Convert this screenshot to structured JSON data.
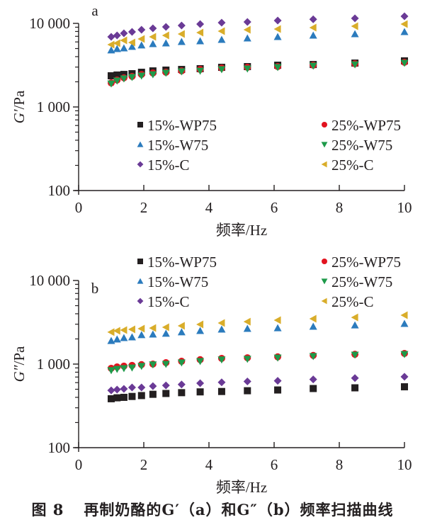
{
  "caption": {
    "figure_number": "图 8",
    "text": "再制奶酪的G′（a）和G″（b）频率扫描曲线"
  },
  "chart_data": [
    {
      "type": "scatter",
      "panel_label": "a",
      "title": "",
      "xlabel": "频率/Hz",
      "ylabel": "G′/Pa",
      "yscale": "log",
      "xlim": [
        0,
        10
      ],
      "ylim": [
        100,
        10000
      ],
      "xticks": [
        0,
        2,
        4,
        6,
        8,
        10
      ],
      "xtick_labels": [
        "0",
        "2",
        "4",
        "6",
        "8",
        "10"
      ],
      "yticks": [
        100,
        1000,
        10000
      ],
      "ytick_labels": [
        "100",
        "1 000",
        "10 000"
      ],
      "grid": false,
      "legend_position": "lower-center",
      "x": [
        1,
        1.18,
        1.39,
        1.64,
        1.93,
        2.28,
        2.68,
        3.16,
        3.73,
        4.39,
        5.18,
        6.11,
        7.2,
        8.48,
        10
      ],
      "series": [
        {
          "name": "15%-WP75",
          "marker": "square",
          "color": "#231f20",
          "values": [
            2360,
            2410,
            2450,
            2500,
            2600,
            2700,
            2760,
            2810,
            2870,
            2980,
            3040,
            3160,
            3220,
            3350,
            3560
          ]
        },
        {
          "name": "25%-WP75",
          "marker": "circle",
          "color": "#e2131f",
          "values": [
            1940,
            2100,
            2230,
            2320,
            2450,
            2550,
            2600,
            2700,
            2810,
            2920,
            2980,
            3040,
            3160,
            3290,
            3420
          ]
        },
        {
          "name": "15%-W75",
          "marker": "triangle-up",
          "color": "#2b7bbd",
          "values": [
            4770,
            4950,
            5050,
            5260,
            5470,
            5680,
            5790,
            6020,
            6140,
            6380,
            6640,
            6900,
            7170,
            7460,
            7910
          ]
        },
        {
          "name": "25%-W75",
          "marker": "triangle-down",
          "color": "#1e9a4a",
          "values": [
            1900,
            2060,
            2180,
            2270,
            2360,
            2450,
            2550,
            2650,
            2700,
            2810,
            2870,
            2980,
            3100,
            3220,
            3350
          ]
        },
        {
          "name": "15%-C",
          "marker": "diamond",
          "color": "#6a3a96",
          "values": [
            6900,
            7170,
            7610,
            7910,
            8390,
            8720,
            9070,
            9430,
            9810,
            10200,
            10400,
            10800,
            11200,
            11500,
            12150
          ]
        },
        {
          "name": "25%-C",
          "marker": "triangle-left",
          "color": "#d9ad2a",
          "values": [
            5570,
            5790,
            6260,
            5900,
            6510,
            6900,
            7170,
            7460,
            7760,
            8070,
            8390,
            8550,
            8900,
            9250,
            9810
          ]
        }
      ]
    },
    {
      "type": "scatter",
      "panel_label": "b",
      "title": "",
      "xlabel": "频率/Hz",
      "ylabel": "G″/Pa",
      "yscale": "log",
      "xlim": [
        0,
        10
      ],
      "ylim": [
        100,
        10000
      ],
      "xticks": [
        0,
        2,
        4,
        6,
        8,
        10
      ],
      "xtick_labels": [
        "0",
        "2",
        "4",
        "6",
        "8",
        "10"
      ],
      "yticks": [
        100,
        1000,
        10000
      ],
      "ytick_labels": [
        "100",
        "1 000",
        "10 000"
      ],
      "grid": false,
      "legend_position": "top-center",
      "x": [
        1,
        1.18,
        1.39,
        1.64,
        1.93,
        2.28,
        2.68,
        3.16,
        3.73,
        4.39,
        5.18,
        6.11,
        7.2,
        8.48,
        10
      ],
      "series": [
        {
          "name": "15%-WP75",
          "marker": "square",
          "color": "#231f20",
          "values": [
            385,
            395,
            400,
            410,
            420,
            435,
            445,
            455,
            465,
            470,
            480,
            490,
            510,
            520,
            535
          ]
        },
        {
          "name": "25%-WP75",
          "marker": "circle",
          "color": "#e2131f",
          "values": [
            890,
            925,
            945,
            965,
            985,
            1000,
            1040,
            1080,
            1130,
            1170,
            1190,
            1220,
            1270,
            1310,
            1340
          ]
        },
        {
          "name": "15%-W75",
          "marker": "triangle-up",
          "color": "#2b7bbd",
          "values": [
            1900,
            1980,
            2060,
            2100,
            2230,
            2270,
            2320,
            2410,
            2500,
            2600,
            2650,
            2700,
            2810,
            2920,
            3040
          ]
        },
        {
          "name": "25%-W75",
          "marker": "triangle-down",
          "color": "#1e9a4a",
          "values": [
            840,
            870,
            890,
            905,
            945,
            985,
            1000,
            1040,
            1080,
            1130,
            1150,
            1190,
            1240,
            1290,
            1310
          ]
        },
        {
          "name": "15%-C",
          "marker": "diamond",
          "color": "#6a3a96",
          "values": [
            485,
            495,
            505,
            525,
            525,
            545,
            555,
            570,
            590,
            605,
            620,
            630,
            655,
            680,
            705
          ]
        },
        {
          "name": "25%-C",
          "marker": "triangle-left",
          "color": "#d9ad2a",
          "values": [
            2410,
            2500,
            2550,
            2600,
            2650,
            2700,
            2760,
            2870,
            2980,
            3100,
            3220,
            3350,
            3490,
            3620,
            3840
          ]
        }
      ]
    }
  ]
}
